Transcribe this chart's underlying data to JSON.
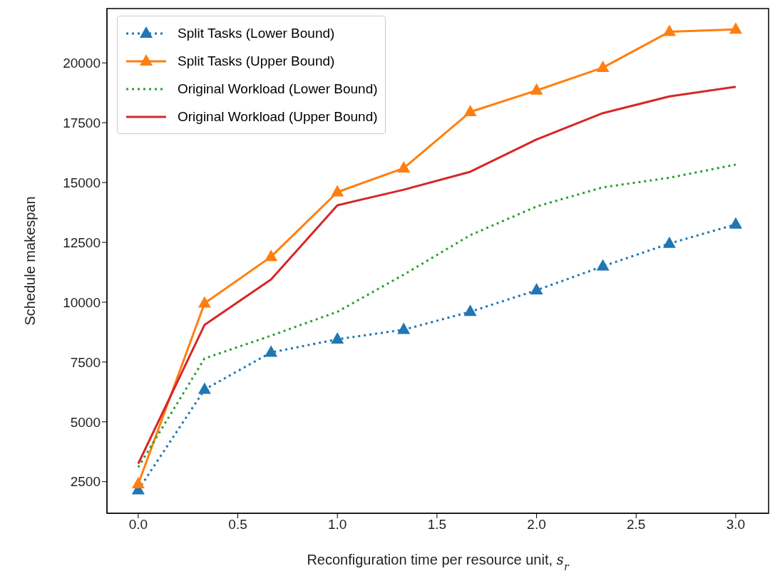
{
  "chart_data": {
    "type": "line",
    "xlabel": "Reconfiguration time per resource unit, s$_{r}$",
    "ylabel": "Schedule makespan",
    "x": [
      0,
      0.333,
      0.667,
      1,
      1.333,
      1.667,
      2,
      2.333,
      2.667,
      3
    ],
    "series": [
      {
        "name": "Split Tasks (Lower Bound)",
        "color": "#1f77b4",
        "marker": "triangle",
        "line_style": "dotted",
        "values": [
          2150,
          6350,
          7900,
          8450,
          8850,
          9600,
          10500,
          11500,
          12450,
          13250
        ]
      },
      {
        "name": "Split Tasks (Upper Bound)",
        "color": "#ff7f0e",
        "marker": "triangle",
        "line_style": "solid",
        "values": [
          2400,
          9950,
          11900,
          14600,
          15600,
          17950,
          18850,
          19800,
          21300,
          21400
        ]
      },
      {
        "name": "Original Workload (Lower Bound)",
        "color": "#2ca02c",
        "marker": "none",
        "line_style": "dotted",
        "values": [
          3100,
          7650,
          8600,
          9600,
          11150,
          12800,
          14000,
          14800,
          15200,
          15750
        ]
      },
      {
        "name": "Original Workload (Upper Bound)",
        "color": "#d62728",
        "marker": "none",
        "line_style": "solid",
        "values": [
          3250,
          9050,
          10950,
          14050,
          14700,
          15450,
          16800,
          17900,
          18600,
          19000
        ]
      }
    ],
    "xlim": [
      -0.157,
      3.165
    ],
    "xticks": [
      {
        "value": 0,
        "label": "0.0"
      },
      {
        "value": 0.5,
        "label": "0.5"
      },
      {
        "value": 1,
        "label": "1.0"
      },
      {
        "value": 1.5,
        "label": "1.5"
      },
      {
        "value": 2,
        "label": "2.0"
      },
      {
        "value": 2.5,
        "label": "2.5"
      },
      {
        "value": 3,
        "label": "3.0"
      }
    ],
    "ylim": [
      1180,
      22270
    ],
    "yticks": [
      2500,
      5000,
      7500,
      10000,
      12500,
      15000,
      17500,
      20000
    ],
    "grid": false,
    "legend": "top left"
  }
}
